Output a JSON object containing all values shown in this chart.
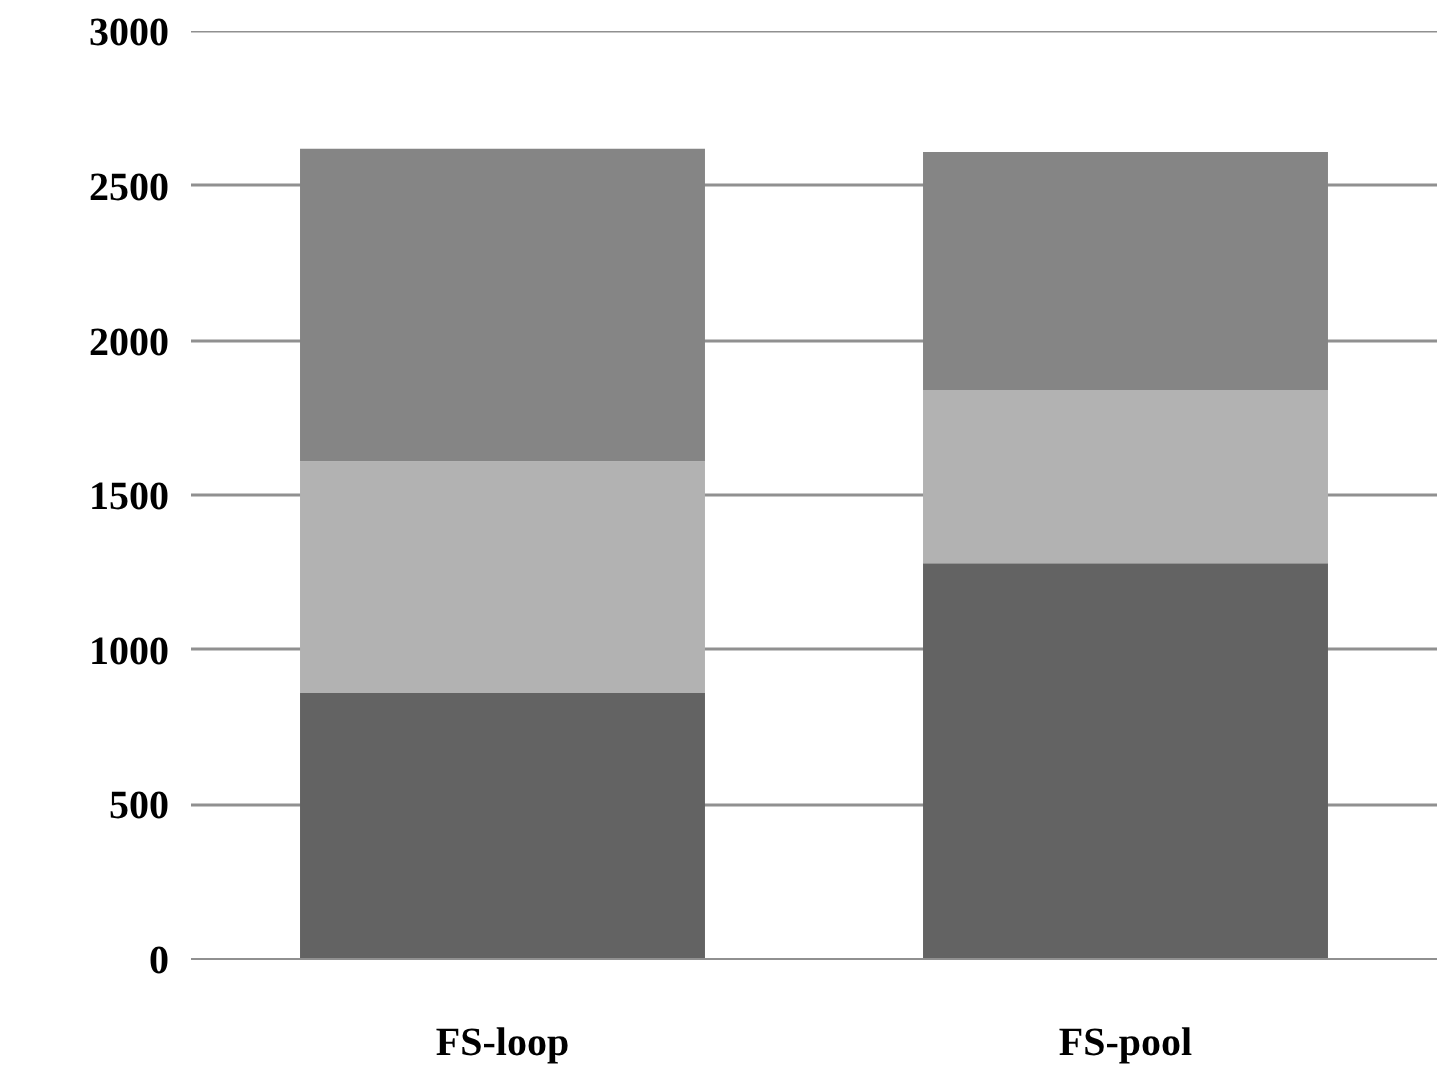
{
  "chart_data": {
    "type": "bar",
    "stacked": true,
    "categories": [
      "FS-loop",
      "FS-pool"
    ],
    "series": [
      {
        "color": "#636363",
        "values": [
          860,
          1280
        ]
      },
      {
        "color": "#b2b2b2",
        "values": [
          750,
          560
        ]
      },
      {
        "color": "#858585",
        "values": [
          1010,
          770
        ]
      }
    ],
    "ylim": [
      0,
      3000
    ],
    "yticks": [
      0,
      500,
      1000,
      1500,
      2000,
      2500,
      3000
    ],
    "grid": "y"
  }
}
